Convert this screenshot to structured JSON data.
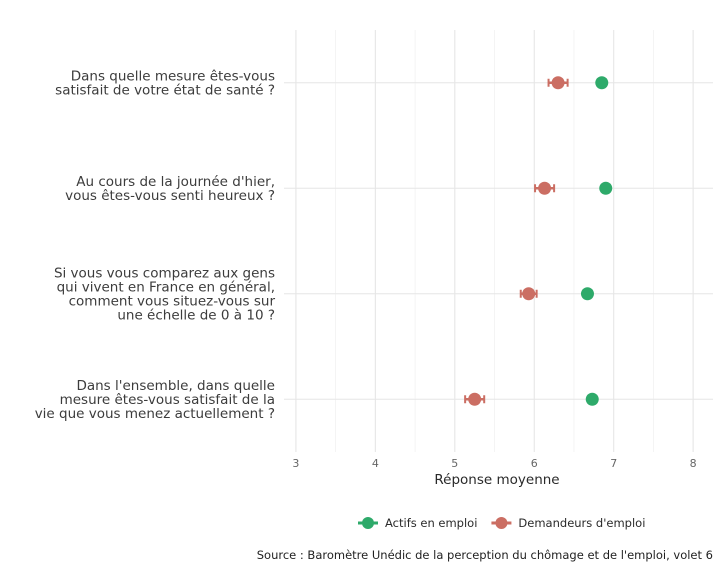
{
  "chart_data": {
    "type": "dot-errorbar",
    "xlabel": "Réponse moyenne",
    "xlim": [
      2.85,
      8.25
    ],
    "x_ticks": [
      3,
      4,
      5,
      6,
      7,
      8
    ],
    "grid": true,
    "legend_position": "bottom",
    "categories": [
      [
        "Dans quelle mesure êtes-vous",
        "satisfait de votre état de santé ?"
      ],
      [
        "Au cours de la journée d'hier,",
        "vous êtes-vous senti heureux ?"
      ],
      [
        "Si vous vous comparez aux gens",
        "qui vivent en France en général,",
        "comment vous situez-vous sur",
        "une échelle de 0 à 10 ?"
      ],
      [
        "Dans l'ensemble, dans quelle",
        "mesure êtes-vous satisfait de la",
        "vie que vous menez actuellement ?"
      ]
    ],
    "series": [
      {
        "name": "Actifs en emploi",
        "color": "#2eaa6a",
        "values": [
          6.85,
          6.9,
          6.67,
          6.73
        ],
        "ci_low": [
          6.8,
          6.85,
          6.62,
          6.68
        ],
        "ci_high": [
          6.9,
          6.95,
          6.72,
          6.78
        ]
      },
      {
        "name": "Demandeurs d'emploi",
        "color": "#cb6e63",
        "values": [
          6.3,
          6.13,
          5.93,
          5.25
        ],
        "ci_low": [
          6.18,
          6.01,
          5.83,
          5.13
        ],
        "ci_high": [
          6.42,
          6.25,
          6.03,
          5.37
        ]
      }
    ],
    "source": "Source : Baromètre Unédic de la perception du chômage et de l'emploi, volet 6"
  }
}
